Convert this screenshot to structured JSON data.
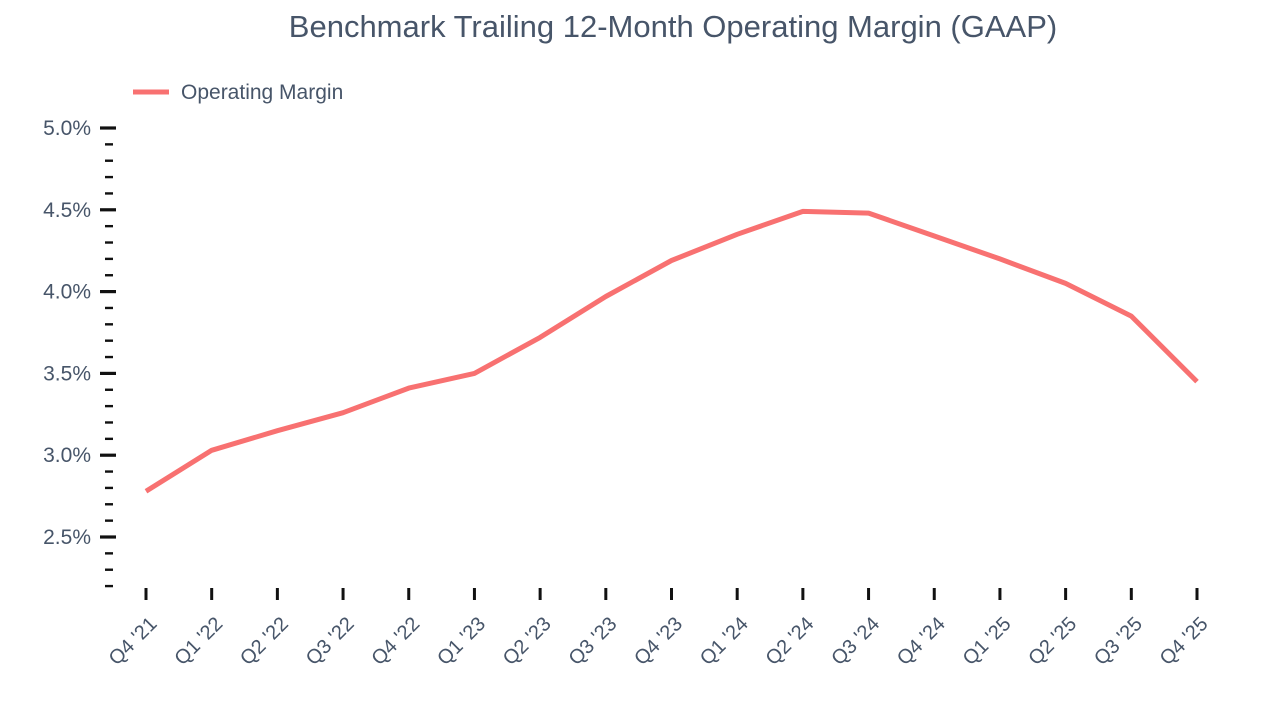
{
  "header": {
    "title": "Benchmark Trailing 12-Month Operating Margin (GAAP)"
  },
  "legend": {
    "label": "Operating Margin"
  },
  "colors": {
    "line": "#f87171",
    "text": "#475569",
    "tick": "#111111",
    "background": "#ffffff"
  },
  "chart_data": {
    "type": "line",
    "title": "Benchmark Trailing 12-Month Operating Margin (GAAP)",
    "categories": [
      "Q4 '21",
      "Q1 '22",
      "Q2 '22",
      "Q3 '22",
      "Q4 '22",
      "Q1 '23",
      "Q2 '23",
      "Q3 '23",
      "Q4 '23",
      "Q1 '24",
      "Q2 '24",
      "Q3 '24",
      "Q4 '24",
      "Q1 '25",
      "Q2 '25",
      "Q3 '25",
      "Q4 '25"
    ],
    "series": [
      {
        "name": "Operating Margin",
        "values": [
          2.78,
          3.03,
          3.15,
          3.26,
          3.41,
          3.5,
          3.72,
          3.97,
          4.19,
          4.35,
          4.49,
          4.48,
          4.34,
          4.2,
          4.05,
          3.85,
          3.45
        ]
      }
    ],
    "xlabel": "",
    "ylabel": "",
    "ylim": [
      2.2,
      5.0
    ],
    "y_major_tick_step": 0.5,
    "y_minor_tick_step": 0.1,
    "y_tick_labels": [
      "2.5%",
      "3.0%",
      "3.5%",
      "4.0%",
      "4.5%",
      "5.0%"
    ],
    "x_tick_rotation": 45,
    "grid": false,
    "legend_position": "top-left",
    "markers": false
  }
}
